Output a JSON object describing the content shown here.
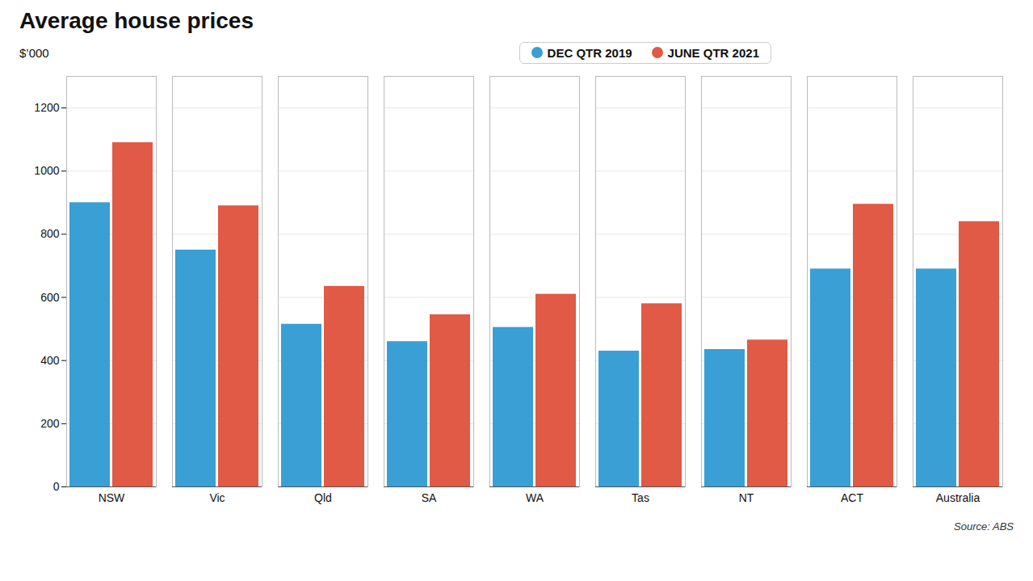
{
  "chart_data": {
    "type": "bar",
    "title": "Average house prices",
    "ylabel": "$’000",
    "source": "Source: ABS",
    "categories": [
      "NSW",
      "Vic",
      "Qld",
      "SA",
      "WA",
      "Tas",
      "NT",
      "ACT",
      "Australia"
    ],
    "series": [
      {
        "name": "DEC QTR 2019",
        "color": "#3a9fd5",
        "values": [
          900,
          750,
          515,
          460,
          505,
          430,
          435,
          690,
          690
        ]
      },
      {
        "name": "JUNE QTR 2021",
        "color": "#e05a45",
        "values": [
          1090,
          890,
          635,
          545,
          610,
          580,
          465,
          895,
          840
        ]
      }
    ],
    "ylim": [
      0,
      1300
    ],
    "yticks": [
      0,
      200,
      400,
      600,
      800,
      1000,
      1200
    ],
    "grid": true,
    "legend": "upper center"
  }
}
